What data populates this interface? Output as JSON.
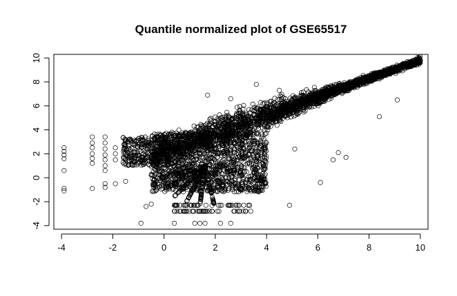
{
  "chart_data": {
    "type": "scatter",
    "title": "Quantile normalized plot of GSE65517",
    "xlabel": "",
    "ylabel": "",
    "xlim": [
      -4.3,
      10.3
    ],
    "ylim": [
      -4.3,
      10.3
    ],
    "xticks": [
      -4,
      -2,
      0,
      2,
      4,
      6,
      8,
      10
    ],
    "yticks": [
      -4,
      -2,
      0,
      2,
      4,
      6,
      8,
      10
    ],
    "xtick_labels": [
      "-4",
      "-2",
      "0",
      "2",
      "4",
      "6",
      "8",
      "10"
    ],
    "ytick_labels": [
      "-4",
      "-2",
      "0",
      "2",
      "4",
      "6",
      "8",
      "10"
    ],
    "marker": "open-circle",
    "grid": false,
    "point_color": "#000000",
    "dense_trend": {
      "x_start": -0.5,
      "x_end": 10.0,
      "y_at_start": 1.8,
      "y_at_end": 9.8
    },
    "points": [
      [
        -3.9,
        2.5
      ],
      [
        -3.9,
        2.2
      ],
      [
        -3.9,
        1.9
      ],
      [
        -3.9,
        1.6
      ],
      [
        -3.9,
        0.6
      ],
      [
        -3.9,
        -0.9
      ],
      [
        -3.9,
        -1.1
      ],
      [
        -2.8,
        3.4
      ],
      [
        -2.8,
        2.9
      ],
      [
        -2.8,
        2.5
      ],
      [
        -2.8,
        2.0
      ],
      [
        -2.8,
        1.6
      ],
      [
        -2.8,
        1.2
      ],
      [
        -2.8,
        -0.9
      ],
      [
        -2.3,
        3.4
      ],
      [
        -2.3,
        2.9
      ],
      [
        -2.3,
        2.4
      ],
      [
        -2.3,
        1.9
      ],
      [
        -2.3,
        1.5
      ],
      [
        -2.3,
        1.0
      ],
      [
        -2.3,
        0.6
      ],
      [
        -2.3,
        -0.5
      ],
      [
        -2.3,
        -0.8
      ],
      [
        -1.9,
        2.5
      ],
      [
        -1.9,
        2.0
      ],
      [
        -1.9,
        1.5
      ],
      [
        -1.9,
        -0.5
      ],
      [
        -1.5,
        3.0
      ],
      [
        -1.5,
        2.6
      ],
      [
        -1.5,
        2.1
      ],
      [
        -1.5,
        1.6
      ],
      [
        -1.5,
        1.2
      ],
      [
        -1.5,
        -0.3
      ],
      [
        -0.9,
        -3.8
      ],
      [
        -0.7,
        -2.4
      ],
      [
        -0.5,
        -2.2
      ],
      [
        0.4,
        -2.8
      ],
      [
        0.4,
        -3.8
      ],
      [
        1.2,
        -3.8
      ],
      [
        1.4,
        -3.8
      ],
      [
        1.6,
        -3.8
      ],
      [
        2.2,
        -3.8
      ],
      [
        2.6,
        -3.8
      ],
      [
        1.7,
        6.9
      ],
      [
        2.6,
        6.6
      ],
      [
        3.6,
        7.8
      ],
      [
        4.5,
        7.3
      ],
      [
        4.9,
        -2.3
      ],
      [
        6.1,
        -0.4
      ],
      [
        6.6,
        1.5
      ],
      [
        6.8,
        2.1
      ],
      [
        7.1,
        1.7
      ],
      [
        8.4,
        5.1
      ],
      [
        9.1,
        6.5
      ],
      [
        5.1,
        2.4
      ]
    ]
  }
}
